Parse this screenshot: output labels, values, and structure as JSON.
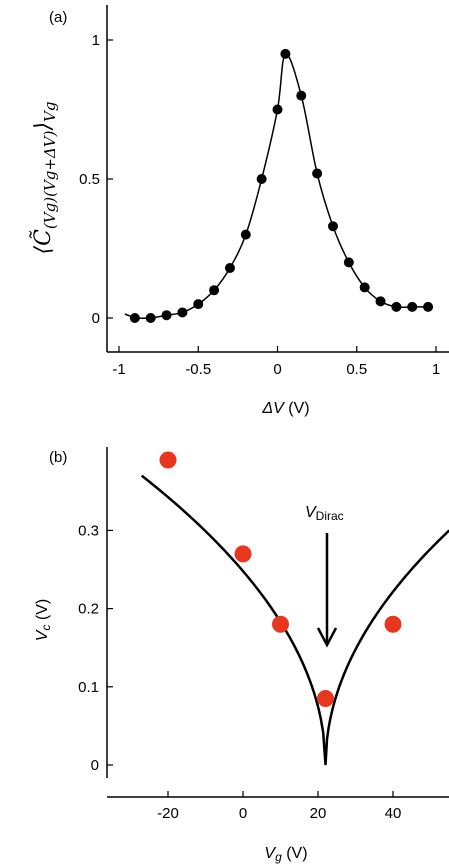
{
  "chart_data": [
    {
      "type": "line",
      "panel_label": "(a)",
      "xlabel": "ΔV (V)",
      "ylabel": "⟨C̃(Vg)(Vg+ΔV)⟩Vg",
      "xlim": [
        -1.0,
        1.0
      ],
      "ylim": [
        -0.1,
        1.1
      ],
      "xticks": [
        "-1",
        "-0.5",
        "0",
        "0.5",
        "1"
      ],
      "yticks": [
        "0",
        "0.5",
        "1"
      ],
      "grid": false,
      "series": [
        {
          "kind": "markers-with-line",
          "color": "#000000",
          "x": [
            -0.9,
            -0.8,
            -0.7,
            -0.6,
            -0.5,
            -0.4,
            -0.3,
            -0.2,
            -0.1,
            0.0,
            0.05,
            0.15,
            0.25,
            0.35,
            0.45,
            0.55,
            0.65,
            0.75,
            0.85,
            0.95
          ],
          "y": [
            0.0,
            0.0,
            0.01,
            0.02,
            0.05,
            0.1,
            0.18,
            0.3,
            0.5,
            0.75,
            0.95,
            0.8,
            0.52,
            0.33,
            0.2,
            0.11,
            0.06,
            0.04,
            0.04,
            0.04
          ]
        }
      ]
    },
    {
      "type": "scatter",
      "panel_label": "(b)",
      "xlabel": "Vg (V)",
      "ylabel": "Vc (V)",
      "xlim": [
        -35,
        55
      ],
      "ylim": [
        -0.01,
        0.4
      ],
      "xticks": [
        "-20",
        "0",
        "20",
        "40"
      ],
      "yticks": [
        "0",
        "0.1",
        "0.2",
        "0.3"
      ],
      "grid": false,
      "series": [
        {
          "kind": "markers",
          "color": "#e8361f",
          "x": [
            -20,
            0,
            10,
            22,
            40
          ],
          "y": [
            0.39,
            0.27,
            0.18,
            0.085,
            0.18
          ]
        },
        {
          "kind": "fit-line",
          "color": "#000000",
          "vertex_x": 22,
          "vertex_y": 0.0,
          "x_start": -27,
          "x_end": 55
        }
      ],
      "annotation": {
        "text": "V",
        "subscript": "Dirac",
        "arrow_target_x": 22
      }
    }
  ]
}
